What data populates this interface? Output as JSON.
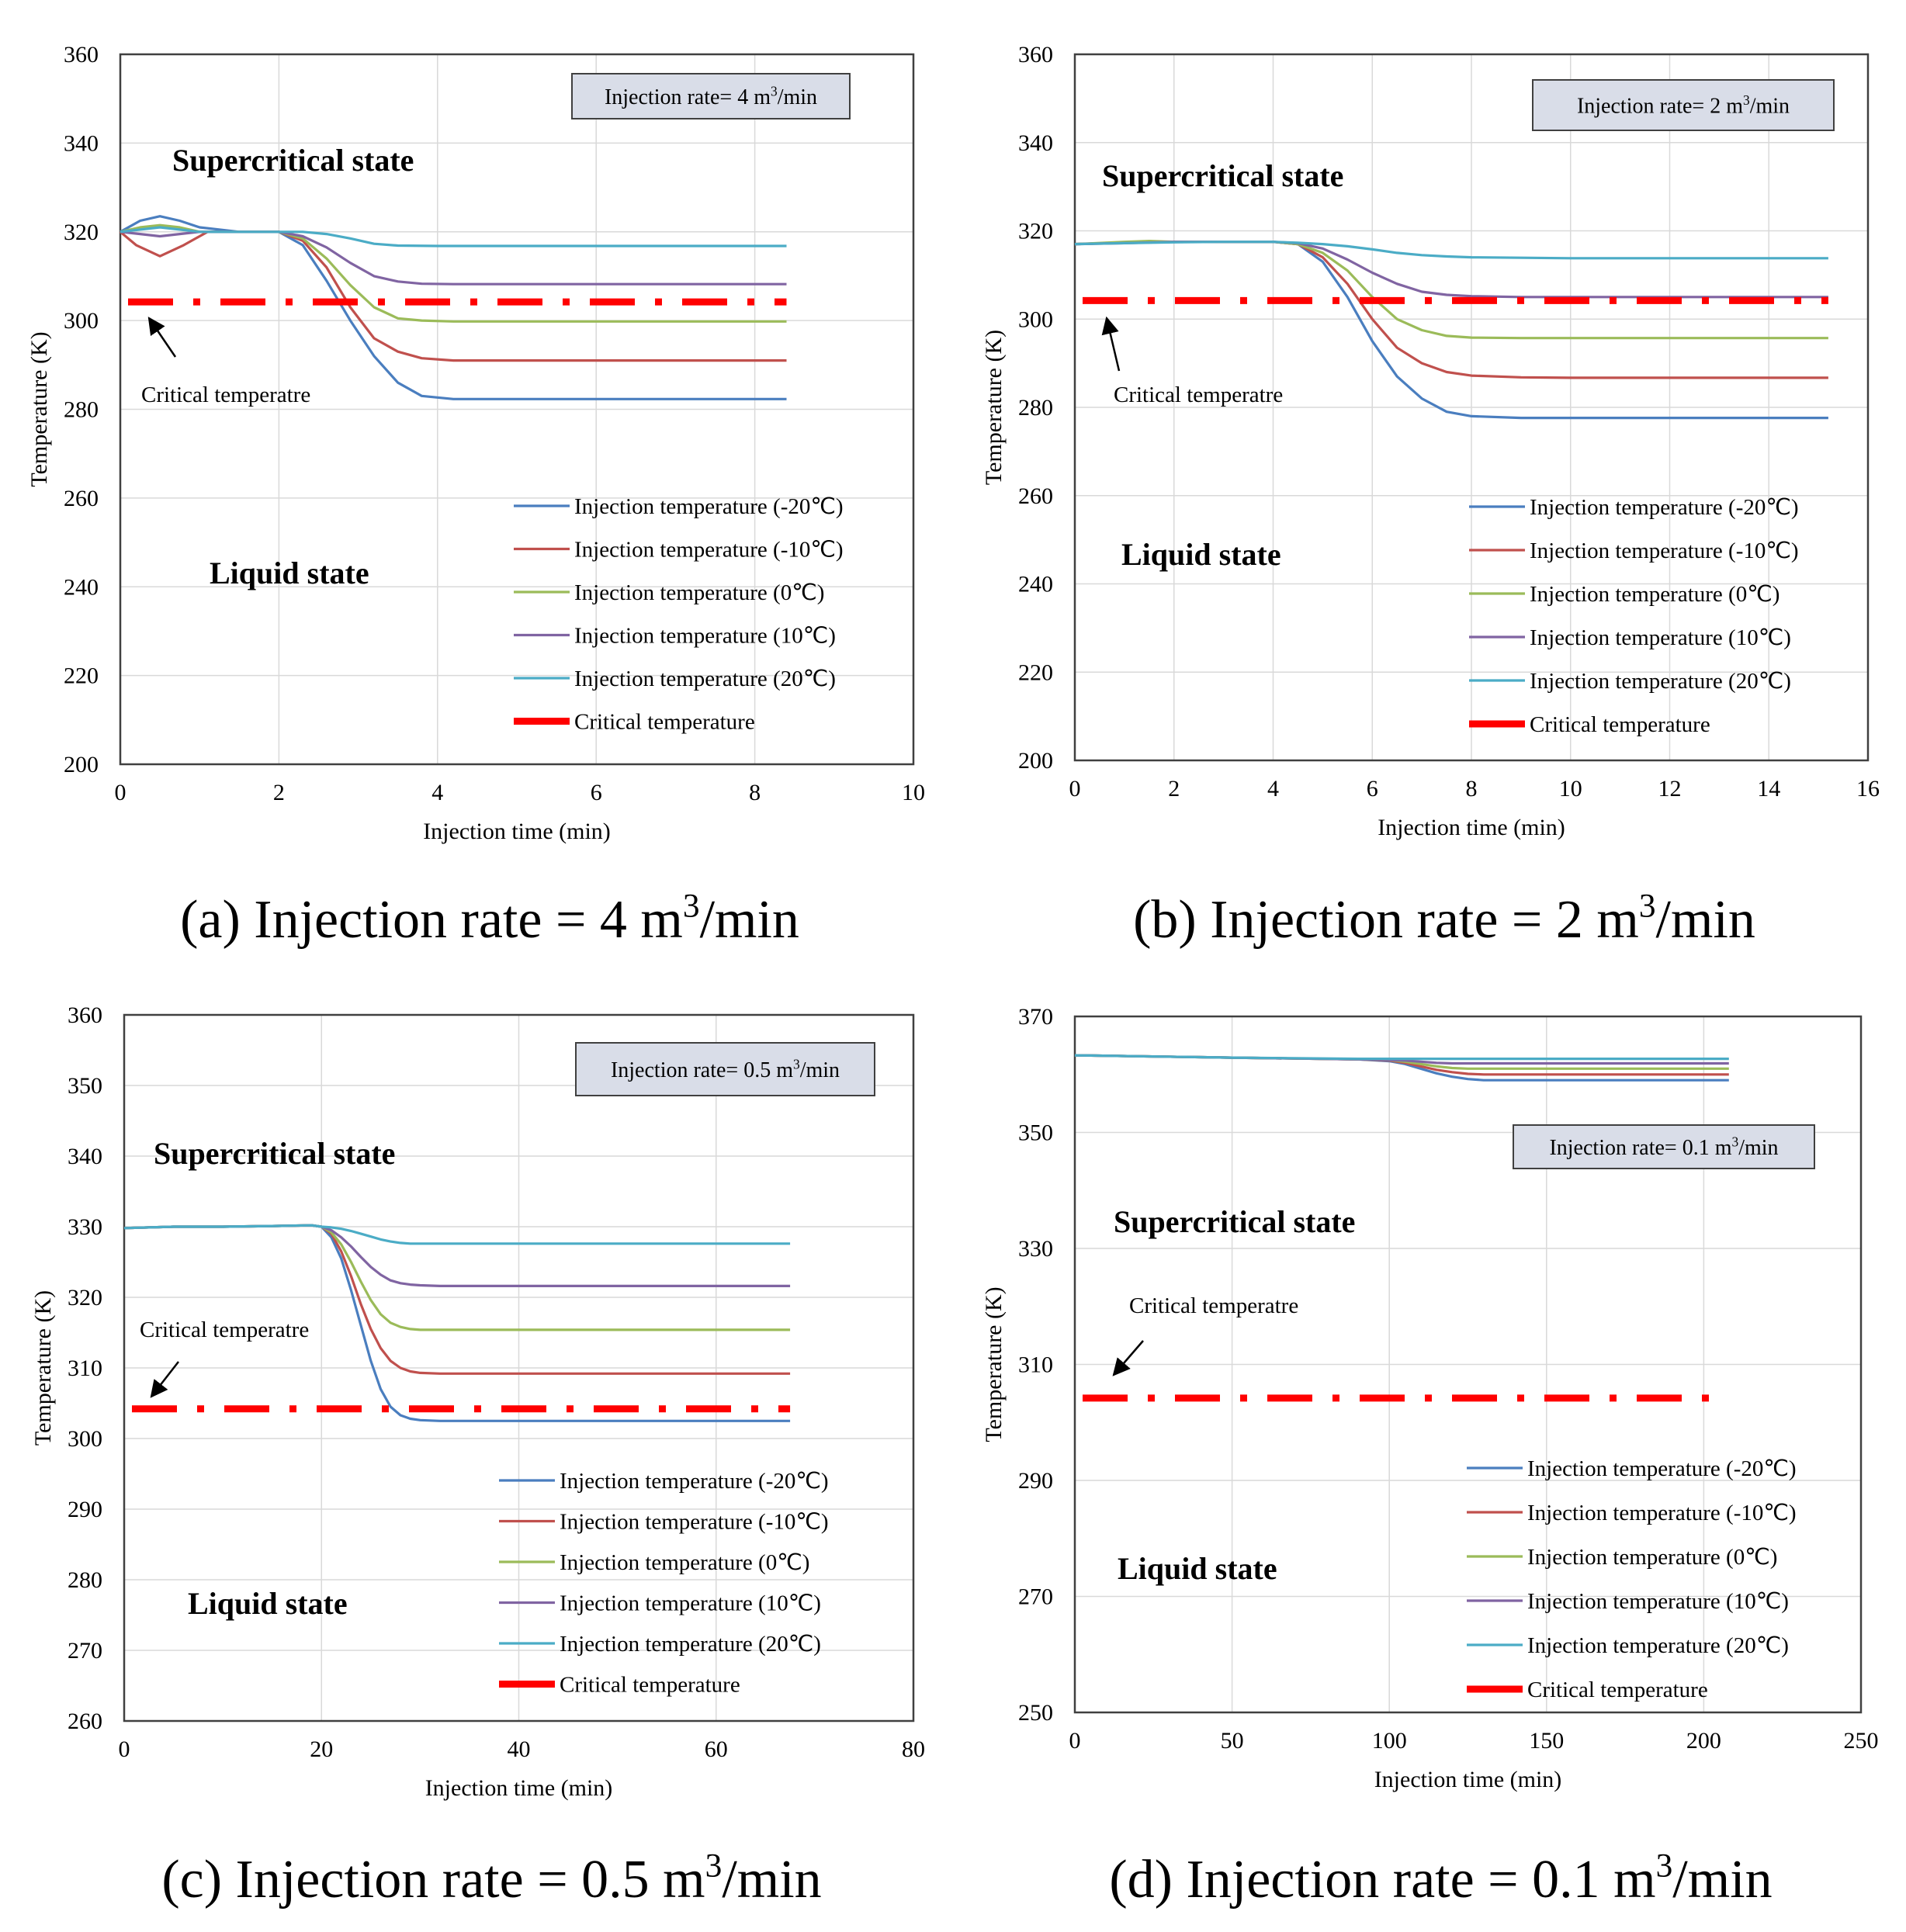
{
  "series_colors": [
    "#4a7ebf",
    "#c0504d",
    "#9bbb59",
    "#8064a2",
    "#4bacc6"
  ],
  "critical_color": "#ff0000",
  "chart_data": [
    {
      "type": "line",
      "caption": "(a) Injection rate = 4 m³/min",
      "box_label": "Injection  rate= 4 m³/min",
      "supercritical_label": "Supercritical  state",
      "liquid_label": "Liquid  state",
      "critical_annotation": "Critical temperatre",
      "xlabel": "Injection  time  (min)",
      "ylabel": "Temperature  (K)",
      "xlim": [
        0,
        10
      ],
      "ylim": [
        200,
        360
      ],
      "xticks": [
        0,
        2,
        4,
        6,
        8,
        10
      ],
      "yticks": [
        200,
        220,
        240,
        260,
        280,
        300,
        320,
        340,
        360
      ],
      "critical_value": 304.2,
      "critical_x": [
        0,
        8.4
      ],
      "legend": [
        "Injection  temperature  (-20℃)",
        "Injection  temperature  (-10℃)",
        "Injection  temperature  (0℃)",
        "Injection  temperature  (10℃)",
        "Injection  temperature  (20℃)",
        "Critical temperature"
      ],
      "series": [
        {
          "name": "Injection temperature (-20℃)",
          "x": [
            0,
            0.25,
            0.5,
            0.75,
            1.0,
            1.5,
            2.0,
            2.3,
            2.6,
            2.9,
            3.2,
            3.5,
            3.8,
            4.2,
            5,
            6,
            8.4
          ],
          "y": [
            320,
            322.5,
            323.5,
            322.5,
            321,
            320,
            320,
            317,
            309,
            300,
            292,
            286,
            283,
            282.3,
            282.3,
            282.3,
            282.3
          ]
        },
        {
          "name": "Injection temperature (-10℃)",
          "x": [
            0,
            0.2,
            0.5,
            0.8,
            1.1,
            1.5,
            2.0,
            2.3,
            2.6,
            2.9,
            3.2,
            3.5,
            3.8,
            4.2,
            5,
            6,
            8.4
          ],
          "y": [
            320,
            317,
            314.5,
            317,
            320,
            320,
            320,
            318,
            312,
            303,
            296,
            293,
            291.5,
            291,
            291,
            291,
            291
          ]
        },
        {
          "name": "Injection temperature (0℃)",
          "x": [
            0,
            0.25,
            0.5,
            0.75,
            1.0,
            1.5,
            2.0,
            2.3,
            2.6,
            2.9,
            3.2,
            3.5,
            3.8,
            4.2,
            5,
            6,
            8.4
          ],
          "y": [
            320,
            321,
            321.5,
            321,
            320,
            320,
            320,
            318.5,
            314,
            308,
            303,
            300.5,
            300,
            299.8,
            299.8,
            299.8,
            299.8
          ]
        },
        {
          "name": "Injection temperature (10℃)",
          "x": [
            0,
            0.25,
            0.5,
            0.75,
            1.0,
            1.5,
            2.0,
            2.3,
            2.6,
            2.9,
            3.2,
            3.5,
            3.8,
            4.2,
            5,
            6,
            8.4
          ],
          "y": [
            320,
            319.5,
            319,
            319.5,
            320,
            320,
            320,
            319,
            316.5,
            313,
            310,
            308.8,
            308.3,
            308.2,
            308.2,
            308.2,
            308.2
          ]
        },
        {
          "name": "Injection temperature (20℃)",
          "x": [
            0,
            0.25,
            0.5,
            0.75,
            1.0,
            1.5,
            2.0,
            2.3,
            2.6,
            2.9,
            3.2,
            3.5,
            4.0,
            5,
            6,
            8.4
          ],
          "y": [
            320,
            320.5,
            321,
            320.5,
            320,
            320,
            320,
            320,
            319.5,
            318.5,
            317.3,
            316.9,
            316.8,
            316.8,
            316.8,
            316.8
          ]
        }
      ]
    },
    {
      "type": "line",
      "caption": "(b) Injection rate = 2 m³/min",
      "box_label": "Injection  rate= 2 m³/min",
      "supercritical_label": "Supercritical  state",
      "liquid_label": "Liquid  state",
      "critical_annotation": "Critical temperatre",
      "xlabel": "Injection  time  (min)",
      "ylabel": "Temperature  (K)",
      "xlim": [
        0,
        16
      ],
      "ylim": [
        200,
        360
      ],
      "xticks": [
        0,
        2,
        4,
        6,
        8,
        10,
        12,
        14,
        16
      ],
      "yticks": [
        200,
        220,
        240,
        260,
        280,
        300,
        320,
        340,
        360
      ],
      "critical_value": 304.2,
      "critical_x": [
        0,
        15.2
      ],
      "legend": [
        "Injection temperature (-20℃)",
        "Injection temperature (-10℃)",
        "Injection temperature (0℃)",
        "Injection temperature (10℃)",
        "Injection temperature (20℃)",
        "Critical temperature"
      ],
      "series": [
        {
          "name": "Injection temperature (-20℃)",
          "x": [
            0,
            1,
            2,
            3,
            4,
            4.5,
            5,
            5.5,
            6,
            6.5,
            7,
            7.5,
            8,
            9,
            10,
            12,
            15.2
          ],
          "y": [
            317,
            317.3,
            317.5,
            317.5,
            317.5,
            317,
            313,
            305,
            295,
            287,
            282,
            279,
            278,
            277.6,
            277.6,
            277.6,
            277.6
          ]
        },
        {
          "name": "Injection temperature (-10℃)",
          "x": [
            0,
            1,
            2,
            3,
            4,
            4.5,
            5,
            5.5,
            6,
            6.5,
            7,
            7.5,
            8,
            9,
            10,
            12,
            15.2
          ],
          "y": [
            317,
            317.3,
            317.5,
            317.5,
            317.5,
            317,
            314,
            308,
            300,
            293.5,
            290,
            288,
            287.2,
            286.8,
            286.7,
            286.7,
            286.7
          ]
        },
        {
          "name": "Injection temperature (0℃)",
          "x": [
            0,
            1,
            1.5,
            2,
            3,
            4,
            4.5,
            5,
            5.5,
            6,
            6.5,
            7,
            7.5,
            8,
            9,
            10,
            12,
            15.2
          ],
          "y": [
            317,
            317.5,
            317.7,
            317.5,
            317.5,
            317.5,
            317,
            315,
            311,
            305,
            300,
            297.5,
            296.2,
            295.8,
            295.7,
            295.7,
            295.7,
            295.7
          ]
        },
        {
          "name": "Injection temperature (10℃)",
          "x": [
            0,
            1,
            2,
            3,
            4,
            4.5,
            5,
            5.5,
            6,
            6.5,
            7,
            7.5,
            8,
            9,
            10,
            12,
            15.2
          ],
          "y": [
            317,
            317.2,
            317.5,
            317.5,
            317.5,
            317.2,
            316,
            313.5,
            310.5,
            308,
            306.2,
            305.5,
            305.2,
            305,
            305,
            305,
            305
          ]
        },
        {
          "name": "Injection temperature (20℃)",
          "x": [
            0,
            1,
            2,
            3,
            4,
            4.5,
            5,
            5.5,
            6,
            6.5,
            7,
            7.5,
            8,
            9,
            10,
            12,
            15.2
          ],
          "y": [
            317,
            317.2,
            317.4,
            317.5,
            317.5,
            317.3,
            317,
            316.5,
            315.8,
            315,
            314.5,
            314.2,
            314,
            313.9,
            313.8,
            313.8,
            313.8
          ]
        }
      ]
    },
    {
      "type": "line",
      "caption": "(c) Injection rate = 0.5 m³/min",
      "box_label": "Injection  rate= 0.5 m³/min",
      "supercritical_label": "Supercritical  state",
      "liquid_label": "Liquid  state",
      "critical_annotation": "Critical temperatre",
      "xlabel": "Injection  time  (min)",
      "ylabel": "Temperature  (K)",
      "xlim": [
        0,
        80
      ],
      "ylim": [
        260,
        360
      ],
      "xticks": [
        0,
        20,
        40,
        60,
        80
      ],
      "yticks": [
        260,
        270,
        280,
        290,
        300,
        310,
        320,
        330,
        340,
        350,
        360
      ],
      "critical_value": 304.2,
      "critical_x": [
        0,
        67.5
      ],
      "legend": [
        "Injection  temperature  (-20℃)",
        "Injection  temperature  (-10℃)",
        "Injection  temperature  (0℃)",
        "Injection  temperature  (10℃)",
        "Injection  temperature  (20℃)",
        "Critical temperature"
      ],
      "series": [
        {
          "name": "Injection temperature (-20℃)",
          "x": [
            0,
            5,
            10,
            15,
            19,
            20,
            21,
            22,
            23,
            24,
            25,
            26,
            27,
            28,
            29,
            30,
            32,
            35,
            40,
            67.5
          ],
          "y": [
            329.8,
            330,
            330,
            330.1,
            330.2,
            330,
            328.5,
            325.5,
            321,
            316,
            311,
            307,
            304.5,
            303.3,
            302.8,
            302.6,
            302.5,
            302.5,
            302.5,
            302.5
          ]
        },
        {
          "name": "Injection temperature (-10℃)",
          "x": [
            0,
            5,
            10,
            15,
            19,
            20,
            21,
            22,
            23,
            24,
            25,
            26,
            27,
            28,
            29,
            30,
            32,
            35,
            40,
            67.5
          ],
          "y": [
            329.8,
            330,
            330,
            330.1,
            330.2,
            330,
            329,
            326.5,
            323,
            319,
            315.5,
            312.8,
            311,
            310,
            309.5,
            309.3,
            309.2,
            309.2,
            309.2,
            309.2
          ]
        },
        {
          "name": "Injection temperature (0℃)",
          "x": [
            0,
            5,
            10,
            15,
            19,
            20,
            21,
            22,
            23,
            24,
            25,
            26,
            27,
            28,
            29,
            30,
            32,
            35,
            40,
            67.5
          ],
          "y": [
            329.8,
            330,
            330,
            330.1,
            330.2,
            330,
            329.2,
            327.5,
            325,
            322.2,
            319.6,
            317.6,
            316.4,
            315.8,
            315.5,
            315.4,
            315.4,
            315.4,
            315.4,
            315.4
          ]
        },
        {
          "name": "Injection temperature (10℃)",
          "x": [
            0,
            5,
            10,
            15,
            19,
            20,
            21,
            22,
            23,
            24,
            25,
            26,
            27,
            28,
            29,
            30,
            32,
            35,
            40,
            67.5
          ],
          "y": [
            329.8,
            330,
            330,
            330.1,
            330.2,
            330,
            329.5,
            328.5,
            327.2,
            325.7,
            324.3,
            323.2,
            322.4,
            322,
            321.8,
            321.7,
            321.6,
            321.6,
            321.6,
            321.6
          ]
        },
        {
          "name": "Injection temperature (20℃)",
          "x": [
            0,
            5,
            10,
            15,
            19,
            20,
            21,
            22,
            23,
            24,
            25,
            26,
            27,
            28,
            29,
            30,
            32,
            35,
            40,
            67.5
          ],
          "y": [
            329.8,
            330,
            330,
            330.1,
            330.2,
            330,
            329.9,
            329.7,
            329.4,
            329,
            328.6,
            328.2,
            327.9,
            327.7,
            327.6,
            327.6,
            327.6,
            327.6,
            327.6,
            327.6
          ]
        }
      ]
    },
    {
      "type": "line",
      "caption": "(d) Injection rate = 0.1 m³/min",
      "box_label": "Injection  rate= 0.1 m³/min",
      "supercritical_label": "Supercritical  state",
      "liquid_label": "Liquid  state",
      "critical_annotation": "Critical temperatre",
      "xlabel": "Injection  time  (min)",
      "ylabel": "Temperature  (K)",
      "xlim": [
        0,
        250
      ],
      "ylim": [
        250,
        370
      ],
      "xticks": [
        0,
        50,
        100,
        150,
        200,
        250
      ],
      "yticks": [
        250,
        270,
        290,
        310,
        330,
        350,
        370
      ],
      "critical_value": 304.2,
      "critical_x": [
        0,
        203
      ],
      "legend": [
        "Injection  temperature  (-20℃)",
        "Injection  temperature  (-10℃)",
        "Injection  temperature  (0℃)",
        "Injection  temperature  (10℃)",
        "Injection  temperature  (20℃)",
        "Critical temperature"
      ],
      "series": [
        {
          "name": "Injection temperature (-20℃)",
          "x": [
            0,
            50,
            90,
            100,
            105,
            110,
            115,
            120,
            125,
            130,
            140,
            150,
            208
          ],
          "y": [
            363.3,
            362.9,
            362.6,
            362.3,
            361.8,
            361,
            360.2,
            359.6,
            359.2,
            359,
            359,
            359,
            359
          ]
        },
        {
          "name": "Injection temperature (-10℃)",
          "x": [
            0,
            50,
            90,
            100,
            105,
            110,
            115,
            120,
            125,
            130,
            140,
            150,
            208
          ],
          "y": [
            363.3,
            362.9,
            362.6,
            362.4,
            362,
            361.4,
            360.8,
            360.4,
            360.1,
            360,
            360,
            360,
            360
          ]
        },
        {
          "name": "Injection temperature (0℃)",
          "x": [
            0,
            50,
            90,
            100,
            105,
            110,
            115,
            120,
            125,
            130,
            140,
            150,
            208
          ],
          "y": [
            363.3,
            362.9,
            362.6,
            362.5,
            362.2,
            361.8,
            361.4,
            361.1,
            361,
            361,
            361,
            361,
            361
          ]
        },
        {
          "name": "Injection temperature (10℃)",
          "x": [
            0,
            50,
            90,
            100,
            105,
            110,
            115,
            120,
            125,
            130,
            140,
            150,
            208
          ],
          "y": [
            363.3,
            362.9,
            362.6,
            362.5,
            362.4,
            362.2,
            362,
            361.9,
            361.9,
            361.9,
            361.9,
            361.9,
            361.9
          ]
        },
        {
          "name": "Injection temperature (20℃)",
          "x": [
            0,
            50,
            90,
            100,
            105,
            110,
            115,
            120,
            125,
            130,
            140,
            150,
            208
          ],
          "y": [
            363.3,
            362.9,
            362.7,
            362.7,
            362.7,
            362.7,
            362.7,
            362.7,
            362.7,
            362.7,
            362.7,
            362.7,
            362.7
          ]
        }
      ]
    }
  ]
}
